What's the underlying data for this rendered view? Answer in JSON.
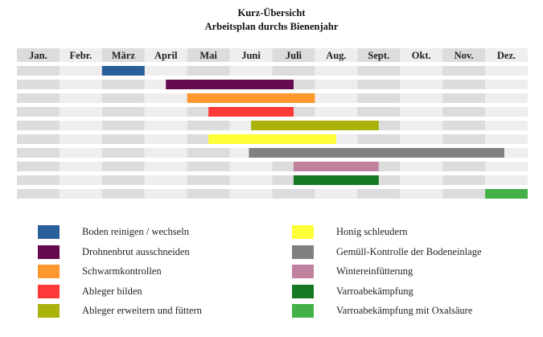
{
  "chart_data": {
    "type": "gantt",
    "title": "Kurz-Übersicht",
    "subtitle": "Arbeitsplan durchs Bienenjahr",
    "categories": [
      "Jan.",
      "Febr.",
      "März",
      "April",
      "Mai",
      "Juni",
      "Juli",
      "Aug.",
      "Sept.",
      "Okt.",
      "Nov.",
      "Dez."
    ],
    "tasks": [
      {
        "name": "Boden reinigen / wechseln",
        "start": 2,
        "end": 3,
        "color": "#2a6099"
      },
      {
        "name": "Drohnenbrut ausschneiden",
        "start": 3.5,
        "end": 6.5,
        "color": "#650a4e"
      },
      {
        "name": "Schwarmkontrollen",
        "start": 4,
        "end": 7,
        "color": "#ff972f"
      },
      {
        "name": "Ableger bilden",
        "start": 4.5,
        "end": 6.5,
        "color": "#ff3838"
      },
      {
        "name": "Ableger erweitern und füttern",
        "start": 5.5,
        "end": 8.5,
        "color": "#aab20b"
      },
      {
        "name": "Honig schleudern",
        "start": 4.5,
        "end": 7.5,
        "color": "#ffff38"
      },
      {
        "name": "Gemüll-Kontrolle der Bodeneinlage",
        "start": 5.45,
        "end": 11.45,
        "color": "#808080"
      },
      {
        "name": "Wintereinfütterung",
        "start": 6.5,
        "end": 8.5,
        "color": "#bf819e"
      },
      {
        "name": "Varroabekämpfung",
        "start": 6.5,
        "end": 8.5,
        "color": "#157722"
      },
      {
        "name": "Varroabekämpfung mit Oxalsäure",
        "start": 11,
        "end": 12,
        "color": "#43b048"
      }
    ],
    "legend": "bottom",
    "colors": {
      "band_dark": "#dcdcdc",
      "band_light": "#eeeeee"
    }
  }
}
